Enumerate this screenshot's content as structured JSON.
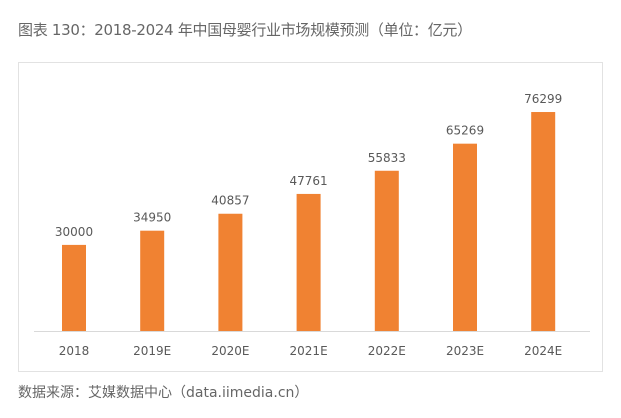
{
  "title": "图表 130：2018-2024 年中国母婴行业市场规模预测（单位：亿元）",
  "source": "数据来源：艾媒数据中心（data.iimedia.cn）",
  "colors": {
    "bar": "#F08232",
    "axis": "#d9d9d9",
    "label": "#595959"
  },
  "chart_data": {
    "type": "bar",
    "title": "图表 130：2018-2024 年中国母婴行业市场规模预测（单位：亿元）",
    "categories": [
      "2018",
      "2019E",
      "2020E",
      "2021E",
      "2022E",
      "2023E",
      "2024E"
    ],
    "values": [
      30000,
      34950,
      40857,
      47761,
      55833,
      65269,
      76299
    ],
    "xlabel": "",
    "ylabel": "",
    "ylim": [
      0,
      100000
    ],
    "grid": false,
    "data_labels": true
  }
}
